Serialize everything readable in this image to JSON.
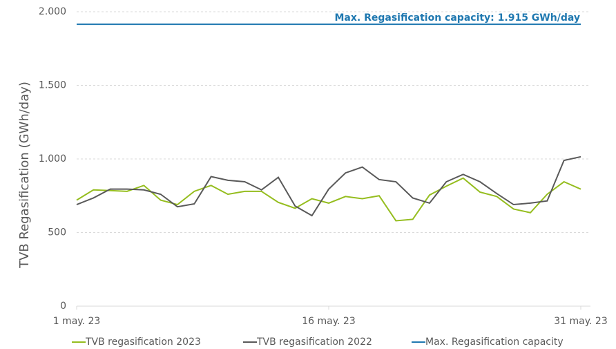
{
  "chart_data": {
    "type": "line",
    "ylabel": "TVB Regasification (GWh/day)",
    "annotation": "Max. Regasification capacity: 1.915 GWh/day",
    "categories": [
      "1 may. 23",
      null,
      null,
      null,
      null,
      null,
      null,
      null,
      null,
      null,
      null,
      null,
      null,
      null,
      null,
      "16 may. 23",
      null,
      null,
      null,
      null,
      null,
      null,
      null,
      null,
      null,
      null,
      null,
      null,
      null,
      null,
      "31 may. 23"
    ],
    "series": [
      {
        "name": "TVB regasification 2023",
        "color": "#95bd1e",
        "values": [
          720,
          790,
          785,
          780,
          820,
          720,
          690,
          780,
          820,
          760,
          780,
          780,
          705,
          665,
          730,
          700,
          745,
          730,
          750,
          580,
          590,
          755,
          815,
          870,
          775,
          745,
          660,
          635,
          760,
          845,
          795
        ]
      },
      {
        "name": "TVB regasification 2022",
        "color": "#595959",
        "values": [
          690,
          735,
          795,
          795,
          790,
          760,
          675,
          695,
          880,
          855,
          845,
          790,
          875,
          680,
          615,
          795,
          905,
          945,
          860,
          845,
          735,
          700,
          845,
          895,
          845,
          765,
          690,
          700,
          715,
          990,
          1015
        ]
      },
      {
        "name": "Max. Regasification capacity",
        "color": "#1f78b0",
        "values": [
          1915,
          1915,
          1915,
          1915,
          1915,
          1915,
          1915,
          1915,
          1915,
          1915,
          1915,
          1915,
          1915,
          1915,
          1915,
          1915,
          1915,
          1915,
          1915,
          1915,
          1915,
          1915,
          1915,
          1915,
          1915,
          1915,
          1915,
          1915,
          1915,
          1915,
          1915
        ]
      }
    ],
    "ylim": [
      0,
      2000
    ],
    "yticks": [
      0,
      500,
      {
        "value": 1000,
        "label": "1.000"
      },
      {
        "value": 1500,
        "label": "1.500"
      },
      {
        "value": 2000,
        "label": "2.000"
      }
    ],
    "grid": true,
    "legend": "bottom"
  }
}
